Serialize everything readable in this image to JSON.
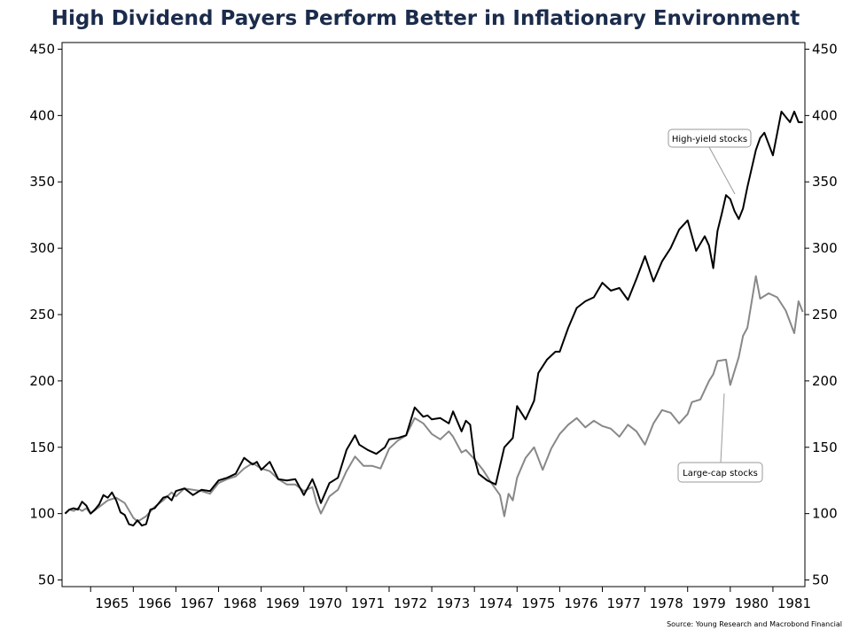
{
  "chart_data": {
    "type": "line",
    "title": "High Dividend Payers Perform Better in Inflationary Environment",
    "source": "Source: Young Research and Macrobond Financial",
    "xlim": [
      1964.33,
      1981.75
    ],
    "ylim": [
      45,
      455
    ],
    "y_ticks": [
      50,
      100,
      150,
      200,
      250,
      300,
      350,
      400,
      450
    ],
    "y_tick_labels": [
      "50",
      "100",
      "150",
      "200",
      "250",
      "300",
      "350",
      "400",
      "450"
    ],
    "x_tick_labels": [
      "1965",
      "1966",
      "1967",
      "1968",
      "1969",
      "1970",
      "1971",
      "1972",
      "1973",
      "1974",
      "1975",
      "1976",
      "1977",
      "1978",
      "1979",
      "1980",
      "1981"
    ],
    "grid": false,
    "legend": "none",
    "series": [
      {
        "name": "High-yield stocks",
        "color": "#000000",
        "x": [
          1964.4,
          1964.5,
          1964.6,
          1964.7,
          1964.8,
          1964.9,
          1965.0,
          1965.1,
          1965.2,
          1965.3,
          1965.4,
          1965.5,
          1965.6,
          1965.7,
          1965.8,
          1965.9,
          1966.0,
          1966.1,
          1966.2,
          1966.3,
          1966.4,
          1966.5,
          1966.6,
          1966.7,
          1966.8,
          1966.9,
          1967.0,
          1967.2,
          1967.4,
          1967.6,
          1967.8,
          1968.0,
          1968.2,
          1968.4,
          1968.6,
          1968.8,
          1968.9,
          1969.0,
          1969.2,
          1969.4,
          1969.6,
          1969.8,
          1970.0,
          1970.2,
          1970.3,
          1970.4,
          1970.6,
          1970.8,
          1971.0,
          1971.2,
          1971.3,
          1971.5,
          1971.7,
          1971.9,
          1972.0,
          1972.2,
          1972.4,
          1972.6,
          1972.8,
          1972.9,
          1973.0,
          1973.2,
          1973.4,
          1973.5,
          1973.7,
          1973.8,
          1973.9,
          1974.0,
          1974.1,
          1974.3,
          1974.5,
          1974.7,
          1974.9,
          1975.0,
          1975.2,
          1975.4,
          1975.5,
          1975.7,
          1975.9,
          1976.0,
          1976.2,
          1976.4,
          1976.6,
          1976.8,
          1977.0,
          1977.2,
          1977.4,
          1977.6,
          1977.8,
          1978.0,
          1978.2,
          1978.4,
          1978.6,
          1978.8,
          1979.0,
          1979.2,
          1979.4,
          1979.5,
          1979.6,
          1979.7,
          1979.8,
          1979.9,
          1980.0,
          1980.1,
          1980.2,
          1980.3,
          1980.4,
          1980.6,
          1980.7,
          1980.8,
          1981.0,
          1981.2,
          1981.4,
          1981.5,
          1981.6,
          1981.7
        ],
        "values": [
          100,
          103,
          104,
          103,
          109,
          106,
          100,
          103,
          107,
          114,
          112,
          116,
          110,
          101,
          99,
          92,
          91,
          95,
          91,
          92,
          103,
          104,
          108,
          112,
          113,
          110,
          117,
          119,
          114,
          118,
          117,
          125,
          127,
          130,
          142,
          137,
          139,
          133,
          139,
          126,
          125,
          126,
          114,
          126,
          118,
          108,
          123,
          127,
          148,
          159,
          152,
          148,
          145,
          150,
          156,
          157,
          159,
          180,
          173,
          174,
          171,
          172,
          168,
          177,
          162,
          170,
          167,
          142,
          130,
          125,
          122,
          150,
          157,
          181,
          171,
          185,
          206,
          216,
          222,
          222,
          240,
          255,
          260,
          263,
          274,
          268,
          270,
          261,
          277,
          294,
          275,
          290,
          300,
          314,
          321,
          298,
          309,
          302,
          285,
          313,
          326,
          340,
          337,
          328,
          322,
          330,
          346,
          374,
          383,
          387,
          370,
          403,
          395,
          403,
          395,
          395
        ],
        "label": "High-yield stocks"
      },
      {
        "name": "Large-cap stocks",
        "color": "#888888",
        "x": [
          1964.4,
          1964.5,
          1964.6,
          1964.7,
          1964.8,
          1964.9,
          1965.0,
          1965.2,
          1965.4,
          1965.6,
          1965.8,
          1966.0,
          1966.1,
          1966.3,
          1966.5,
          1966.7,
          1966.9,
          1967.0,
          1967.2,
          1967.4,
          1967.6,
          1967.8,
          1968.0,
          1968.2,
          1968.4,
          1968.6,
          1968.8,
          1969.0,
          1969.2,
          1969.4,
          1969.6,
          1969.8,
          1970.0,
          1970.2,
          1970.3,
          1970.4,
          1970.6,
          1970.8,
          1971.0,
          1971.2,
          1971.4,
          1971.6,
          1971.8,
          1972.0,
          1972.2,
          1972.4,
          1972.6,
          1972.8,
          1973.0,
          1973.2,
          1973.4,
          1973.5,
          1973.7,
          1973.8,
          1974.0,
          1974.2,
          1974.4,
          1974.6,
          1974.7,
          1974.8,
          1974.9,
          1975.0,
          1975.2,
          1975.4,
          1975.6,
          1975.8,
          1976.0,
          1976.2,
          1976.4,
          1976.6,
          1976.8,
          1977.0,
          1977.2,
          1977.4,
          1977.6,
          1977.8,
          1978.0,
          1978.2,
          1978.4,
          1978.6,
          1978.8,
          1979.0,
          1979.1,
          1979.3,
          1979.5,
          1979.6,
          1979.7,
          1979.9,
          1980.0,
          1980.2,
          1980.3,
          1980.4,
          1980.6,
          1980.7,
          1980.9,
          1981.1,
          1981.3,
          1981.5,
          1981.6,
          1981.7
        ],
        "values": [
          100,
          103,
          102,
          104,
          102,
          104,
          100,
          105,
          110,
          112,
          108,
          97,
          94,
          98,
          105,
          110,
          116,
          113,
          119,
          118,
          117,
          115,
          123,
          126,
          128,
          134,
          138,
          134,
          132,
          126,
          122,
          122,
          117,
          120,
          108,
          100,
          113,
          118,
          132,
          143,
          136,
          136,
          134,
          149,
          155,
          159,
          172,
          168,
          160,
          156,
          162,
          158,
          146,
          148,
          141,
          133,
          123,
          114,
          98,
          115,
          110,
          127,
          142,
          150,
          133,
          149,
          160,
          167,
          172,
          165,
          170,
          166,
          164,
          158,
          167,
          162,
          152,
          168,
          178,
          176,
          168,
          175,
          184,
          186,
          200,
          205,
          215,
          216,
          197,
          218,
          234,
          240,
          279,
          262,
          266,
          263,
          253,
          236,
          260,
          252
        ],
        "label": "Large-cap stocks"
      }
    ]
  }
}
